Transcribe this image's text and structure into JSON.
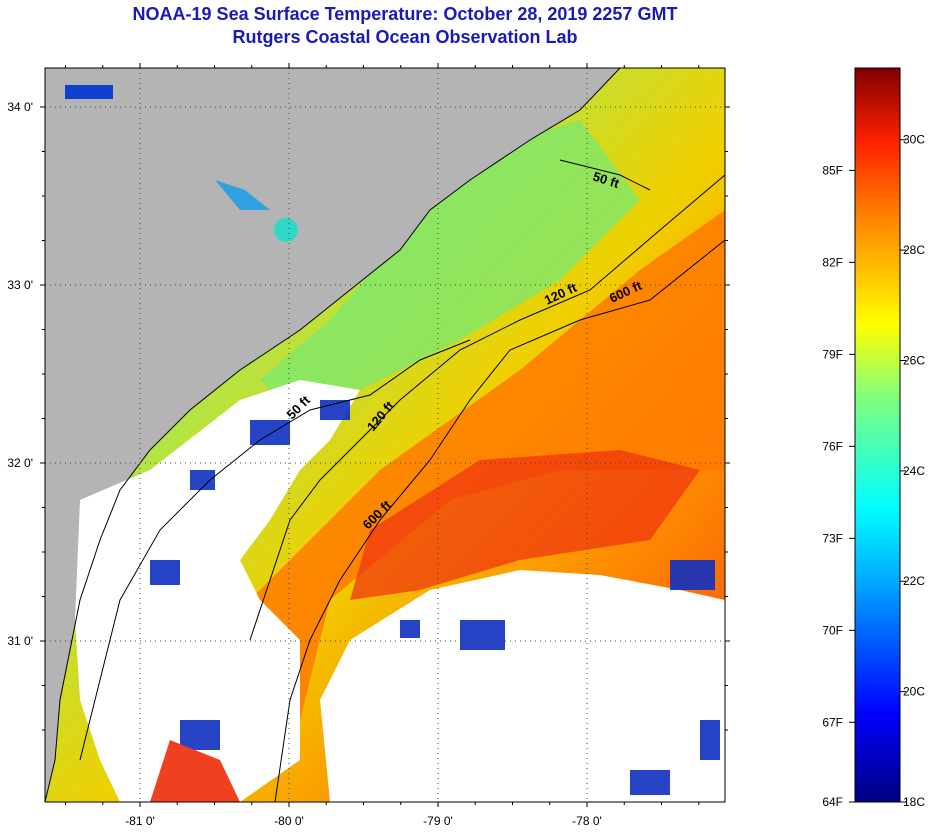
{
  "title": "NOAA-19 Sea Surface Temperature:  October 28, 2019 2257 GMT",
  "subtitle": "Rutgers Coastal Ocean Observation Lab",
  "lat_ticks": [
    {
      "value": 34,
      "label": "34 0'"
    },
    {
      "value": 33,
      "label": "33 0'"
    },
    {
      "value": 32,
      "label": "32 0'"
    },
    {
      "value": 31,
      "label": "31 0'"
    }
  ],
  "lon_ticks": [
    {
      "value": -81,
      "label": "-81 0'"
    },
    {
      "value": -80,
      "label": "-80 0'"
    },
    {
      "value": -79,
      "label": "-79 0'"
    },
    {
      "value": -78,
      "label": "-78 0'"
    }
  ],
  "contour_labels": [
    {
      "name": "contour-label-50ft-north",
      "text": "50 ft"
    },
    {
      "name": "contour-label-120ft-north",
      "text": "120 ft"
    },
    {
      "name": "contour-label-600ft-north",
      "text": "600 ft"
    },
    {
      "name": "contour-label-50ft-south",
      "text": "50 ft"
    },
    {
      "name": "contour-label-120ft-south",
      "text": "120 ft"
    },
    {
      "name": "contour-label-600ft-south",
      "text": "600 ft"
    }
  ],
  "colorbar": {
    "min_c": 18,
    "max_c": 31.3,
    "fahrenheit_labels": [
      "85F",
      "82F",
      "79F",
      "76F",
      "73F",
      "70F",
      "67F",
      "64F"
    ],
    "celsius_labels": [
      "30C",
      "28C",
      "26C",
      "24C",
      "22C",
      "20C",
      "18C"
    ]
  },
  "colors": {
    "land": "#b4b4b4",
    "cloud": "#ffffff",
    "title": "#1a1ab8"
  }
}
